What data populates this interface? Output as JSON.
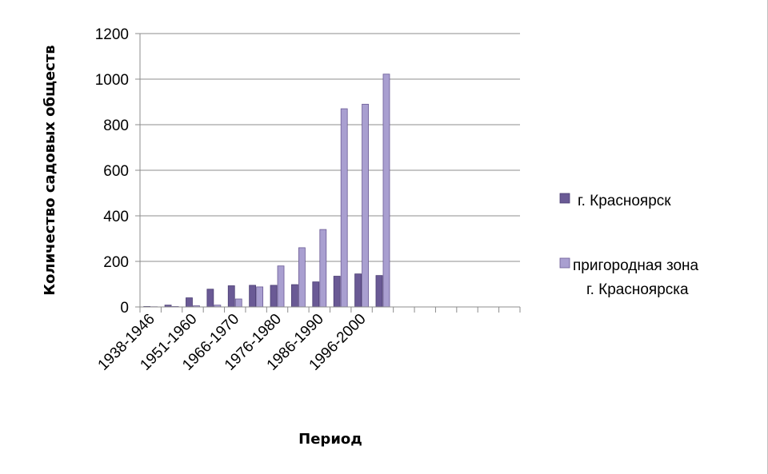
{
  "chart_data": {
    "type": "bar",
    "xlabel": "Период",
    "ylabel": "Количество садовых обществ",
    "ylim": [
      0,
      1200
    ],
    "yticks": [
      "0",
      "200",
      "400",
      "600",
      "800",
      "1000",
      "1200"
    ],
    "grid": true,
    "legend_position": "right",
    "tick_labels_x": [
      "1938-1946",
      "1951-1960",
      "1966-1970",
      "1976-1980",
      "1986-1990",
      "1996-2000"
    ],
    "categories": [
      "1938-1946",
      "",
      "1951-1960",
      "",
      "1966-1970",
      "",
      "1976-1980",
      "",
      "1986-1990",
      "",
      "1996-2000",
      "",
      "",
      "",
      "",
      "",
      "",
      ""
    ],
    "series": [
      {
        "name": "г. Красноярск",
        "color": "#6a5a95",
        "values": [
          2,
          8,
          40,
          78,
          93,
          95,
          95,
          98,
          110,
          135,
          145,
          138,
          0,
          0,
          0,
          0,
          0,
          0
        ]
      },
      {
        "name": "пригородная зона г. Красноярска",
        "color": "#a99fd0",
        "values": [
          1,
          2,
          5,
          8,
          35,
          88,
          180,
          260,
          340,
          870,
          890,
          1022,
          0,
          0,
          0,
          0,
          0,
          0
        ]
      }
    ],
    "legend": [
      {
        "lines": [
          "г. Красноярск"
        ]
      },
      {
        "lines": [
          "пригородная зона",
          "г. Красноярска"
        ]
      }
    ]
  }
}
